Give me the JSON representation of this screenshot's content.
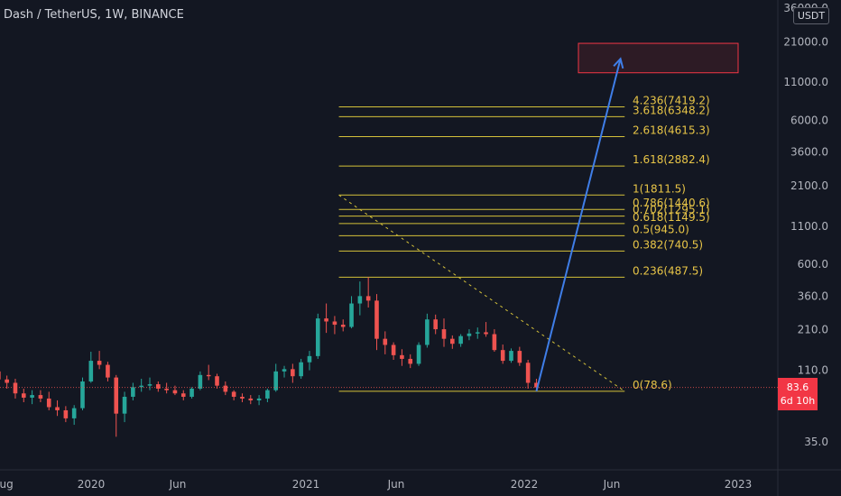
{
  "header": {
    "symbol_title": "Dash / TetherUS, 1W, BINANCE",
    "currency_badge": "USDT"
  },
  "price_tag": {
    "price": "83.6",
    "countdown": "6d 10h"
  },
  "colors": {
    "background": "#131722",
    "up": "#26a69a",
    "down": "#ef5350",
    "fib": "#d4c13a",
    "fib_label": "#e8c547",
    "arrow": "#3f7ee8",
    "target_box": "#f23645",
    "axis_text": "#b2b5be"
  },
  "chart_data": {
    "type": "candlestick",
    "title": "Dash / TetherUS, 1W, BINANCE",
    "y_scale": "log",
    "ylim": [
      27,
      40000
    ],
    "y_ticks": [
      "36000.0",
      "21000.0",
      "11000.0",
      "6000.0",
      "3600.0",
      "2100.0",
      "1100.0",
      "600.0",
      "360.0",
      "210.0",
      "110.0",
      "35.0"
    ],
    "x_ticks": [
      "Aug",
      "2020",
      "Jun",
      "2021",
      "Jun",
      "2022",
      "Jun",
      "2023"
    ],
    "grid": false,
    "last_price": 83.6,
    "last_price_label": "83.6",
    "countdown": "6d 10h",
    "candles": [
      {
        "d": "2019-08-05",
        "o": 118,
        "h": 124,
        "l": 104,
        "c": 108
      },
      {
        "d": "2019-08-19",
        "o": 108,
        "h": 114,
        "l": 88,
        "c": 95
      },
      {
        "d": "2019-09-02",
        "o": 95,
        "h": 101,
        "l": 82,
        "c": 90
      },
      {
        "d": "2019-09-16",
        "o": 90,
        "h": 96,
        "l": 70,
        "c": 76
      },
      {
        "d": "2019-09-30",
        "o": 76,
        "h": 82,
        "l": 66,
        "c": 71
      },
      {
        "d": "2019-10-14",
        "o": 71,
        "h": 80,
        "l": 64,
        "c": 74
      },
      {
        "d": "2019-10-28",
        "o": 74,
        "h": 80,
        "l": 66,
        "c": 70
      },
      {
        "d": "2019-11-11",
        "o": 70,
        "h": 78,
        "l": 58,
        "c": 61
      },
      {
        "d": "2019-11-25",
        "o": 61,
        "h": 68,
        "l": 53,
        "c": 58
      },
      {
        "d": "2019-12-09",
        "o": 58,
        "h": 62,
        "l": 48,
        "c": 51
      },
      {
        "d": "2019-12-23",
        "o": 51,
        "h": 63,
        "l": 46,
        "c": 60
      },
      {
        "d": "2020-01-06",
        "o": 60,
        "h": 98,
        "l": 58,
        "c": 92
      },
      {
        "d": "2020-01-20",
        "o": 92,
        "h": 148,
        "l": 90,
        "c": 128
      },
      {
        "d": "2020-02-03",
        "o": 128,
        "h": 150,
        "l": 112,
        "c": 120
      },
      {
        "d": "2020-02-17",
        "o": 120,
        "h": 126,
        "l": 92,
        "c": 98
      },
      {
        "d": "2020-03-02",
        "o": 98,
        "h": 102,
        "l": 38,
        "c": 55
      },
      {
        "d": "2020-03-16",
        "o": 55,
        "h": 78,
        "l": 48,
        "c": 72
      },
      {
        "d": "2020-03-30",
        "o": 72,
        "h": 90,
        "l": 68,
        "c": 84
      },
      {
        "d": "2020-04-13",
        "o": 84,
        "h": 96,
        "l": 78,
        "c": 86
      },
      {
        "d": "2020-04-27",
        "o": 86,
        "h": 98,
        "l": 80,
        "c": 88
      },
      {
        "d": "2020-05-11",
        "o": 88,
        "h": 92,
        "l": 78,
        "c": 82
      },
      {
        "d": "2020-05-25",
        "o": 82,
        "h": 90,
        "l": 76,
        "c": 80
      },
      {
        "d": "2020-06-08",
        "o": 80,
        "h": 86,
        "l": 74,
        "c": 76
      },
      {
        "d": "2020-06-22",
        "o": 76,
        "h": 80,
        "l": 68,
        "c": 72
      },
      {
        "d": "2020-07-06",
        "o": 72,
        "h": 84,
        "l": 70,
        "c": 82
      },
      {
        "d": "2020-07-20",
        "o": 82,
        "h": 108,
        "l": 80,
        "c": 102
      },
      {
        "d": "2020-08-03",
        "o": 102,
        "h": 120,
        "l": 94,
        "c": 100
      },
      {
        "d": "2020-08-17",
        "o": 100,
        "h": 104,
        "l": 82,
        "c": 86
      },
      {
        "d": "2020-08-31",
        "o": 86,
        "h": 92,
        "l": 74,
        "c": 78
      },
      {
        "d": "2020-09-14",
        "o": 78,
        "h": 80,
        "l": 68,
        "c": 72
      },
      {
        "d": "2020-09-28",
        "o": 72,
        "h": 76,
        "l": 66,
        "c": 70
      },
      {
        "d": "2020-10-12",
        "o": 70,
        "h": 74,
        "l": 64,
        "c": 68
      },
      {
        "d": "2020-10-26",
        "o": 68,
        "h": 74,
        "l": 63,
        "c": 70
      },
      {
        "d": "2020-11-09",
        "o": 70,
        "h": 82,
        "l": 66,
        "c": 80
      },
      {
        "d": "2020-11-23",
        "o": 80,
        "h": 122,
        "l": 78,
        "c": 108
      },
      {
        "d": "2020-12-07",
        "o": 108,
        "h": 118,
        "l": 98,
        "c": 112
      },
      {
        "d": "2020-12-21",
        "o": 112,
        "h": 122,
        "l": 90,
        "c": 100
      },
      {
        "d": "2021-01-04",
        "o": 100,
        "h": 132,
        "l": 96,
        "c": 125
      },
      {
        "d": "2021-01-18",
        "o": 125,
        "h": 150,
        "l": 110,
        "c": 138
      },
      {
        "d": "2021-02-01",
        "o": 138,
        "h": 272,
        "l": 132,
        "c": 252
      },
      {
        "d": "2021-02-15",
        "o": 252,
        "h": 320,
        "l": 200,
        "c": 240
      },
      {
        "d": "2021-03-01",
        "o": 240,
        "h": 262,
        "l": 196,
        "c": 228
      },
      {
        "d": "2021-03-15",
        "o": 228,
        "h": 248,
        "l": 205,
        "c": 220
      },
      {
        "d": "2021-03-29",
        "o": 220,
        "h": 360,
        "l": 215,
        "c": 320
      },
      {
        "d": "2021-04-12",
        "o": 320,
        "h": 455,
        "l": 265,
        "c": 360
      },
      {
        "d": "2021-04-26",
        "o": 360,
        "h": 488,
        "l": 300,
        "c": 335
      },
      {
        "d": "2021-05-10",
        "o": 335,
        "h": 372,
        "l": 152,
        "c": 182
      },
      {
        "d": "2021-05-24",
        "o": 182,
        "h": 205,
        "l": 142,
        "c": 165
      },
      {
        "d": "2021-06-07",
        "o": 165,
        "h": 172,
        "l": 130,
        "c": 140
      },
      {
        "d": "2021-06-21",
        "o": 140,
        "h": 154,
        "l": 118,
        "c": 132
      },
      {
        "d": "2021-07-05",
        "o": 132,
        "h": 142,
        "l": 114,
        "c": 122
      },
      {
        "d": "2021-07-19",
        "o": 122,
        "h": 172,
        "l": 118,
        "c": 165
      },
      {
        "d": "2021-08-02",
        "o": 165,
        "h": 272,
        "l": 158,
        "c": 248
      },
      {
        "d": "2021-08-16",
        "o": 248,
        "h": 268,
        "l": 196,
        "c": 212
      },
      {
        "d": "2021-08-30",
        "o": 212,
        "h": 252,
        "l": 160,
        "c": 182
      },
      {
        "d": "2021-09-13",
        "o": 182,
        "h": 192,
        "l": 155,
        "c": 168
      },
      {
        "d": "2021-09-27",
        "o": 168,
        "h": 196,
        "l": 160,
        "c": 190
      },
      {
        "d": "2021-10-11",
        "o": 190,
        "h": 212,
        "l": 178,
        "c": 198
      },
      {
        "d": "2021-10-25",
        "o": 198,
        "h": 218,
        "l": 182,
        "c": 202
      },
      {
        "d": "2021-11-08",
        "o": 202,
        "h": 238,
        "l": 188,
        "c": 196
      },
      {
        "d": "2021-11-22",
        "o": 196,
        "h": 212,
        "l": 148,
        "c": 152
      },
      {
        "d": "2021-12-06",
        "o": 152,
        "h": 166,
        "l": 122,
        "c": 128
      },
      {
        "d": "2021-12-20",
        "o": 128,
        "h": 156,
        "l": 124,
        "c": 150
      },
      {
        "d": "2022-01-03",
        "o": 150,
        "h": 160,
        "l": 118,
        "c": 124
      },
      {
        "d": "2022-01-17",
        "o": 124,
        "h": 130,
        "l": 82,
        "c": 90
      },
      {
        "d": "2022-01-31",
        "o": 90,
        "h": 96,
        "l": 78.6,
        "c": 83.6
      }
    ],
    "fibonacci": {
      "levels": [
        {
          "label": "0(78.6)",
          "value": 78.6
        },
        {
          "label": "0.236(487.5)",
          "value": 487.5
        },
        {
          "label": "0.382(740.5)",
          "value": 740.5
        },
        {
          "label": "0.5(945.0)",
          "value": 945.0
        },
        {
          "label": "0.618(1149.5)",
          "value": 1149.5
        },
        {
          "label": "0.702(1295.1)",
          "value": 1295.1
        },
        {
          "label": "0.786(1440.6)",
          "value": 1440.6
        },
        {
          "label": "1(1811.5)",
          "value": 1811.5
        },
        {
          "label": "1.618(2882.4)",
          "value": 2882.4
        },
        {
          "label": "2.618(4615.3)",
          "value": 4615.3
        },
        {
          "label": "3.618(6348.2)",
          "value": 6348.2
        },
        {
          "label": "4.236(7419.2)",
          "value": 7419.2
        }
      ],
      "start_date": "2021-03-08",
      "end_date": "2022-06-27"
    },
    "trendline": {
      "from": {
        "d": "2021-03-08",
        "v": 1811.5
      },
      "to": {
        "d": "2022-06-27",
        "v": 78.6
      }
    },
    "arrow": {
      "from": {
        "d": "2022-01-31",
        "v": 78.6
      },
      "to": {
        "d": "2022-06-20",
        "v": 16000
      }
    },
    "target_zone": {
      "d0": "2022-04-11",
      "d1": "2023-01-02",
      "v0": 12800,
      "v1": 20500
    }
  }
}
